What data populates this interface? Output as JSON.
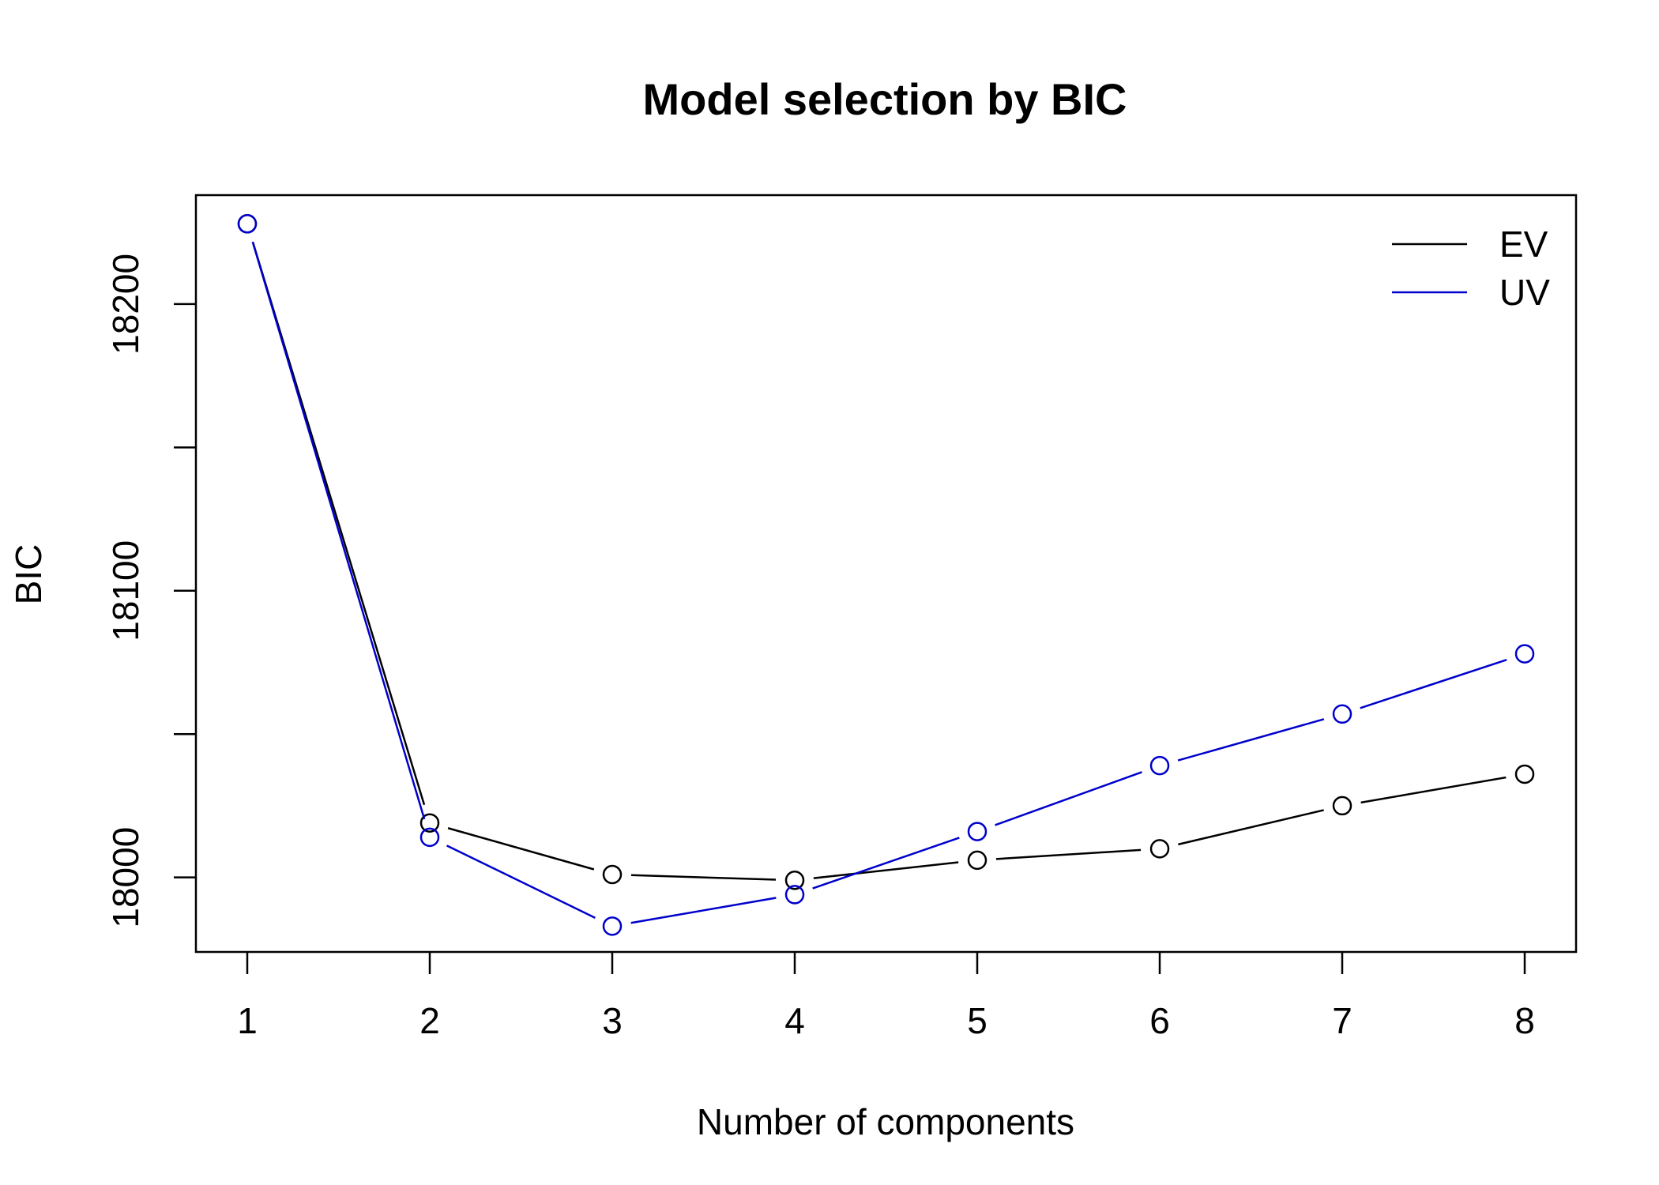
{
  "chart_data": {
    "type": "line",
    "title": "Model selection by BIC",
    "xlabel": "Number of components",
    "ylabel": "BIC",
    "x": [
      1,
      2,
      3,
      4,
      5,
      6,
      7,
      8
    ],
    "xlim": [
      1,
      8
    ],
    "ylim": [
      17974,
      18238
    ],
    "yticks": [
      18000,
      18050,
      18100,
      18150,
      18200
    ],
    "ytick_labels": [
      "18000",
      "",
      "18100",
      "",
      "18200"
    ],
    "xtick_labels": [
      "1",
      "2",
      "3",
      "4",
      "5",
      "6",
      "7",
      "8"
    ],
    "grid": false,
    "legend_position": "top-right",
    "series": [
      {
        "name": "EV",
        "color": "#000000",
        "values": [
          18228,
          18019,
          18001,
          17999,
          18006,
          18010,
          18025,
          18036
        ]
      },
      {
        "name": "UV",
        "color": "#0000cc",
        "values": [
          18228,
          18014,
          17983,
          17994,
          18016,
          18039,
          18057,
          18078
        ]
      }
    ]
  }
}
